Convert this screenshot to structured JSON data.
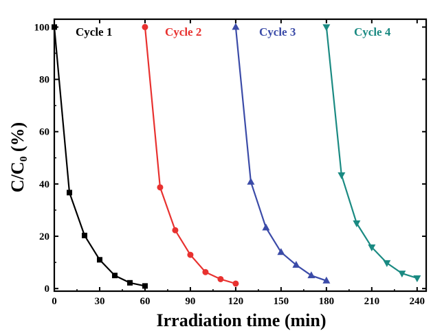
{
  "chart_data": {
    "type": "line",
    "title": "",
    "xlabel": "Irradiation time (min)",
    "ylabel": "C/C₀ (%)",
    "xlim": [
      0,
      246
    ],
    "ylim": [
      -1,
      103
    ],
    "xticks": [
      0,
      30,
      60,
      90,
      120,
      150,
      180,
      210,
      240
    ],
    "yticks": [
      0,
      20,
      40,
      60,
      80,
      100
    ],
    "grid": false,
    "legend_placement": "inline-top",
    "series": [
      {
        "name": "Cycle 1",
        "color": "#000000",
        "marker": "square",
        "x": [
          0,
          10,
          20,
          30,
          40,
          50,
          60
        ],
        "y": [
          100,
          36.7,
          20.3,
          11,
          5,
          2.2,
          1
        ]
      },
      {
        "name": "Cycle 2",
        "color": "#e8312f",
        "marker": "circle",
        "x": [
          60,
          70,
          80,
          90,
          100,
          110,
          120
        ],
        "y": [
          100,
          38.7,
          22.3,
          12.9,
          6.3,
          3.6,
          1.9
        ]
      },
      {
        "name": "Cycle 3",
        "color": "#3b4ba8",
        "marker": "triangle-up",
        "x": [
          120,
          130,
          140,
          150,
          160,
          170,
          180
        ],
        "y": [
          100,
          40.8,
          23.3,
          13.9,
          9,
          5,
          3
        ]
      },
      {
        "name": "Cycle 4",
        "color": "#1a8a82",
        "marker": "triangle-down",
        "x": [
          180,
          190,
          200,
          210,
          220,
          230,
          240
        ],
        "y": [
          100,
          43.4,
          25,
          15.8,
          9.8,
          5.8,
          4
        ]
      }
    ]
  }
}
